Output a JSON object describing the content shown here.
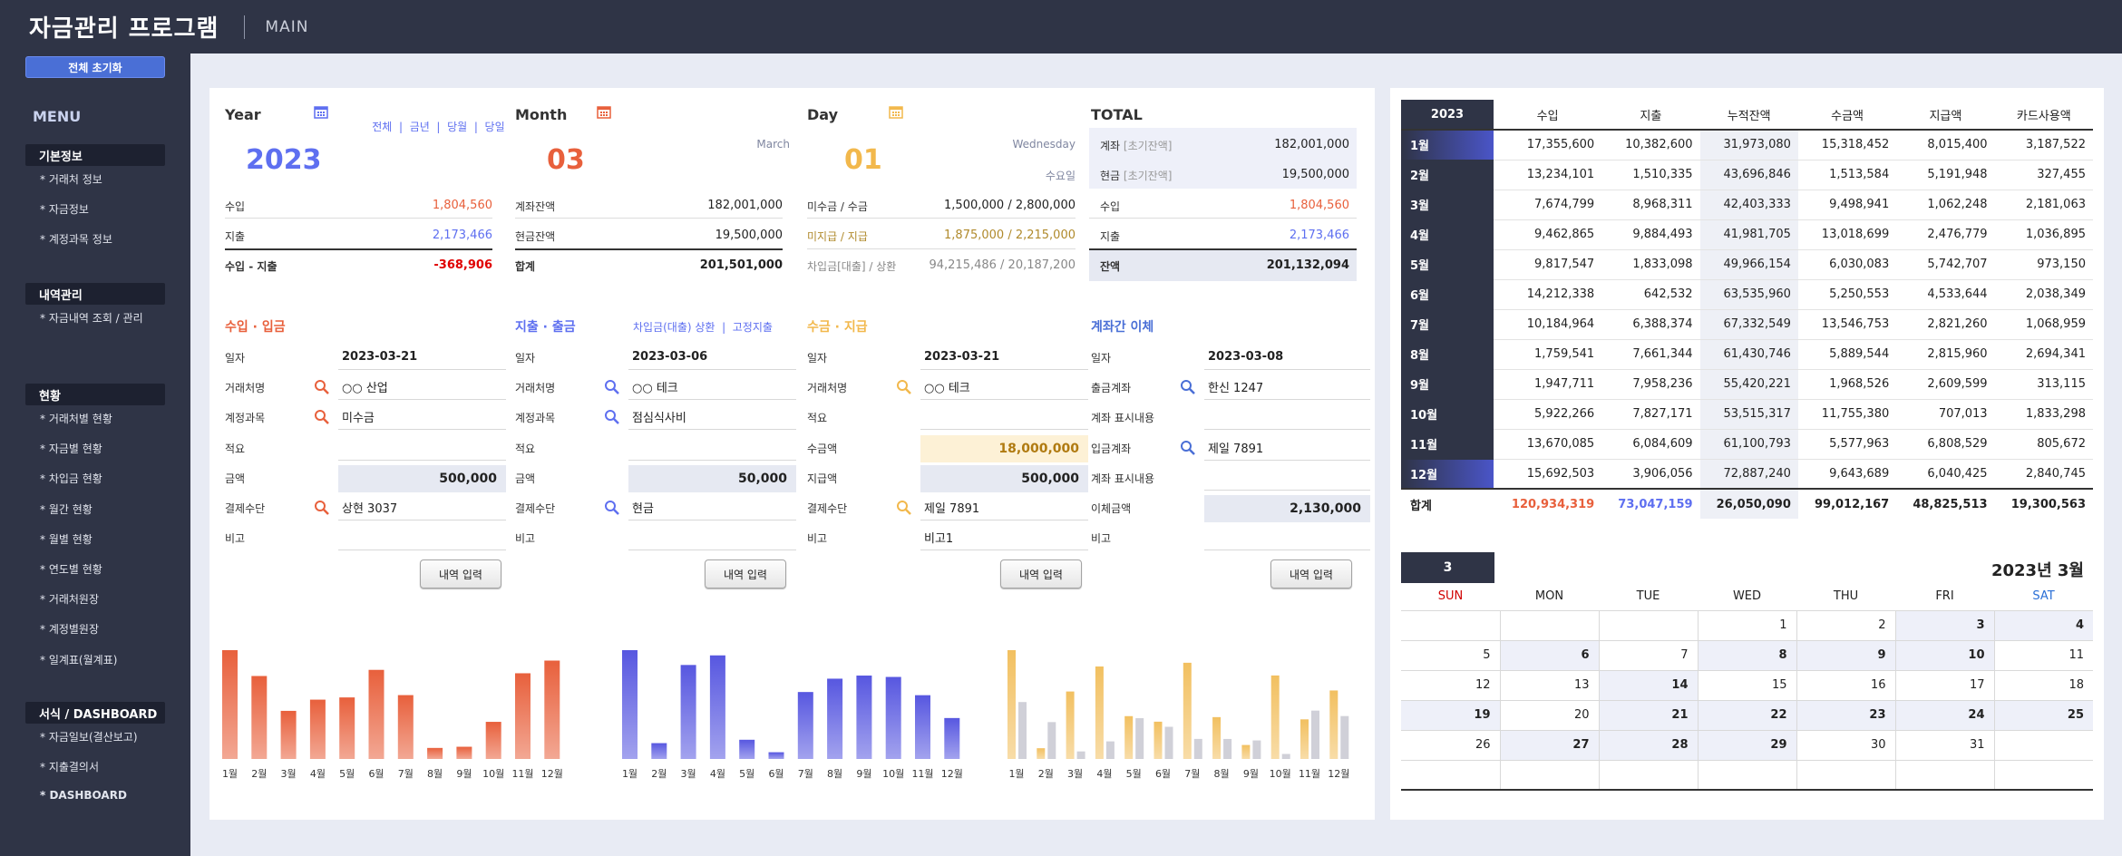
{
  "app": {
    "title": "자금관리 프로그램",
    "page": "MAIN"
  },
  "sidebar": {
    "reset_label": "전체 초기화",
    "menu_title": "MENU",
    "sections": [
      {
        "title": "기본정보",
        "items": [
          "* 거래처 정보",
          "* 자금정보",
          "* 계정과목 정보"
        ]
      },
      {
        "title": "내역관리",
        "items": [
          "* 자금내역 조회 / 관리"
        ]
      },
      {
        "title": "현황",
        "items": [
          "* 거래처별 현황",
          "* 자금별 현황",
          "* 차입금 현황",
          "* 월간 현황",
          "* 월별 현황",
          "* 연도별 현황",
          "* 거래처원장",
          "* 계정별원장",
          "* 일계표(월계표)"
        ]
      },
      {
        "title": "서식 / DASHBOARD",
        "items": [
          "* 자금일보(결산보고)",
          "* 지출결의서",
          "* DASHBOARD"
        ]
      }
    ]
  },
  "year": {
    "title": "Year",
    "links": [
      "전체",
      "금년",
      "당월",
      "당일"
    ],
    "link_sep": "|",
    "value": "2023",
    "rows": [
      {
        "label": "수입",
        "value": "1,804,560"
      },
      {
        "label": "지출",
        "value": "2,173,466"
      }
    ],
    "total_label": "수입 - 지출",
    "total_value": "-368,906"
  },
  "month": {
    "title": "Month",
    "value": "03",
    "name": "March",
    "rows": [
      {
        "label": "계좌잔액",
        "value": "182,001,000"
      },
      {
        "label": "현금잔액",
        "value": "19,500,000"
      }
    ],
    "total_label": "합계",
    "total_value": "201,501,000"
  },
  "day": {
    "title": "Day",
    "value": "01",
    "name": "Wednesday",
    "weekday": "수요일",
    "rows": [
      {
        "label": "미수금 / 수금",
        "value": "1,500,000 / 2,800,000"
      },
      {
        "label": "미지급 / 지급",
        "value": "1,875,000 / 2,215,000"
      },
      {
        "label": "차입금[대출] / 상환",
        "value": "94,215,486 / 20,187,200"
      }
    ]
  },
  "total": {
    "title": "TOTAL",
    "rows": [
      {
        "label": "계좌",
        "sub": "[초기잔액]",
        "value": "182,001,000"
      },
      {
        "label": "현금",
        "sub": "[초기잔액]",
        "value": "19,500,000"
      },
      {
        "label": "수입",
        "sub": "",
        "value": "1,804,560"
      },
      {
        "label": "지출",
        "sub": "",
        "value": "2,173,466"
      }
    ],
    "balance_label": "잔액",
    "balance_value": "201,132,094"
  },
  "forms": {
    "income": {
      "title": "수입 · 입금",
      "rows": [
        {
          "label": "일자",
          "value": "2023-03-21"
        },
        {
          "label": "거래처명",
          "value": "○○ 산업"
        },
        {
          "label": "계정과목",
          "value": "미수금"
        },
        {
          "label": "적요",
          "value": ""
        },
        {
          "label": "금액",
          "value": "500,000"
        },
        {
          "label": "결제수단",
          "value": "상현 3037"
        },
        {
          "label": "비고",
          "value": ""
        }
      ],
      "button": "내역 입력"
    },
    "expense": {
      "title": "지출 · 출금",
      "links": "차입금(대출) 상환  |  고정지출",
      "rows": [
        {
          "label": "일자",
          "value": "2023-03-06"
        },
        {
          "label": "거래처명",
          "value": "○○ 테크"
        },
        {
          "label": "계정과목",
          "value": "점심식사비"
        },
        {
          "label": "적요",
          "value": ""
        },
        {
          "label": "금액",
          "value": "50,000"
        },
        {
          "label": "결제수단",
          "value": "현금"
        },
        {
          "label": "비고",
          "value": ""
        }
      ],
      "button": "내역 입력"
    },
    "collect": {
      "title": "수금 · 지급",
      "rows": [
        {
          "label": "일자",
          "value": "2023-03-21"
        },
        {
          "label": "거래처명",
          "value": "○○ 테크"
        },
        {
          "label": "적요",
          "value": ""
        },
        {
          "label": "수금액",
          "value": "18,000,000"
        },
        {
          "label": "지급액",
          "value": "500,000"
        },
        {
          "label": "결제수단",
          "value": "제일 7891"
        },
        {
          "label": "비고",
          "value": "비고1"
        }
      ],
      "button": "내역 입력"
    },
    "transfer": {
      "title": "계좌간 이체",
      "rows": [
        {
          "label": "일자",
          "value": "2023-03-08"
        },
        {
          "label": "출금계좌",
          "value": "한신 1247"
        },
        {
          "label": "계좌 표시내용",
          "value": ""
        },
        {
          "label": "입금계좌",
          "value": "제일 7891"
        },
        {
          "label": "계좌 표시내용",
          "value": ""
        },
        {
          "label": "이체금액",
          "value": "2,130,000"
        },
        {
          "label": "비고",
          "value": ""
        }
      ],
      "button": "내역 입력"
    }
  },
  "colors": {
    "income": "#e8603c",
    "expense": "#5757e0",
    "collect": "#f2c060",
    "pay": "#d0d0d8",
    "navy": "#2f3446",
    "blue": "#4a6fd6"
  },
  "chart_data": [
    {
      "type": "bar",
      "categories": [
        "1월",
        "2월",
        "3월",
        "4월",
        "5월",
        "6월",
        "7월",
        "8월",
        "9월",
        "10월",
        "11월",
        "12월"
      ],
      "series": [
        {
          "values": [
            17355600,
            13234101,
            7674799,
            9462865,
            9817547,
            14212338,
            10184964,
            1759541,
            1947711,
            5922266,
            13670085,
            15692503
          ]
        }
      ]
    },
    {
      "type": "bar",
      "categories": [
        "1월",
        "2월",
        "3월",
        "4월",
        "5월",
        "6월",
        "7월",
        "8월",
        "9월",
        "10월",
        "11월",
        "12월"
      ],
      "series": [
        {
          "values": [
            10382600,
            1510335,
            8968311,
            9884493,
            1833098,
            642532,
            6388374,
            7661344,
            7958236,
            7827171,
            6084609,
            3906056
          ]
        }
      ]
    },
    {
      "type": "bar",
      "categories": [
        "1월",
        "2월",
        "3월",
        "4월",
        "5월",
        "6월",
        "7월",
        "8월",
        "9월",
        "10월",
        "11월",
        "12월"
      ],
      "series": [
        {
          "values": [
            15318452,
            1513584,
            9498941,
            13018699,
            6030083,
            5250553,
            13546753,
            5889544,
            1968526,
            11755380,
            5577963,
            9643689
          ]
        },
        {
          "values": [
            8015400,
            5191948,
            1062248,
            2476779,
            5742707,
            4533644,
            2821260,
            2815960,
            2609599,
            707013,
            6808529,
            6040425
          ]
        }
      ]
    }
  ],
  "monthly_table": {
    "year": "2023",
    "headers": [
      "수입",
      "지출",
      "누적잔액",
      "수금액",
      "지급액",
      "카드사용액"
    ],
    "rows": [
      {
        "month": "1월",
        "values": [
          "17,355,600",
          "10,382,600",
          "31,973,080",
          "15,318,452",
          "8,015,400",
          "3,187,522"
        ]
      },
      {
        "month": "2월",
        "values": [
          "13,234,101",
          "1,510,335",
          "43,696,846",
          "1,513,584",
          "5,191,948",
          "327,455"
        ]
      },
      {
        "month": "3월",
        "values": [
          "7,674,799",
          "8,968,311",
          "42,403,333",
          "9,498,941",
          "1,062,248",
          "2,181,063"
        ]
      },
      {
        "month": "4월",
        "values": [
          "9,462,865",
          "9,884,493",
          "41,981,705",
          "13,018,699",
          "2,476,779",
          "1,036,895"
        ]
      },
      {
        "month": "5월",
        "values": [
          "9,817,547",
          "1,833,098",
          "49,966,154",
          "6,030,083",
          "5,742,707",
          "973,150"
        ]
      },
      {
        "month": "6월",
        "values": [
          "14,212,338",
          "642,532",
          "63,535,960",
          "5,250,553",
          "4,533,644",
          "2,038,349"
        ]
      },
      {
        "month": "7월",
        "values": [
          "10,184,964",
          "6,388,374",
          "67,332,549",
          "13,546,753",
          "2,821,260",
          "1,068,959"
        ]
      },
      {
        "month": "8월",
        "values": [
          "1,759,541",
          "7,661,344",
          "61,430,746",
          "5,889,544",
          "2,815,960",
          "2,694,341"
        ]
      },
      {
        "month": "9월",
        "values": [
          "1,947,711",
          "7,958,236",
          "55,420,221",
          "1,968,526",
          "2,609,599",
          "313,115"
        ]
      },
      {
        "month": "10월",
        "values": [
          "5,922,266",
          "7,827,171",
          "53,515,317",
          "11,755,380",
          "707,013",
          "1,833,298"
        ]
      },
      {
        "month": "11월",
        "values": [
          "13,670,085",
          "6,084,609",
          "61,100,793",
          "5,577,963",
          "6,808,529",
          "805,672"
        ]
      },
      {
        "month": "12월",
        "values": [
          "15,692,503",
          "3,906,056",
          "72,887,240",
          "9,643,689",
          "6,040,425",
          "2,840,745"
        ]
      }
    ],
    "total_label": "합계",
    "totals": [
      "120,934,319",
      "73,047,159",
      "26,050,090",
      "99,012,167",
      "48,825,513",
      "19,300,563"
    ]
  },
  "calendar": {
    "month_badge": "3",
    "title": "2023년 3월",
    "days": [
      "SUN",
      "MON",
      "TUE",
      "WED",
      "THU",
      "FRI",
      "SAT"
    ],
    "weeks": [
      [
        "",
        "",
        "",
        "1",
        "2",
        "3",
        "4"
      ],
      [
        "5",
        "6",
        "7",
        "8",
        "9",
        "10",
        "11"
      ],
      [
        "12",
        "13",
        "14",
        "15",
        "16",
        "17",
        "18"
      ],
      [
        "19",
        "20",
        "21",
        "22",
        "23",
        "24",
        "25"
      ],
      [
        "26",
        "27",
        "28",
        "29",
        "30",
        "31",
        ""
      ],
      [
        "",
        "",
        "",
        "",
        "",
        "",
        ""
      ]
    ]
  }
}
